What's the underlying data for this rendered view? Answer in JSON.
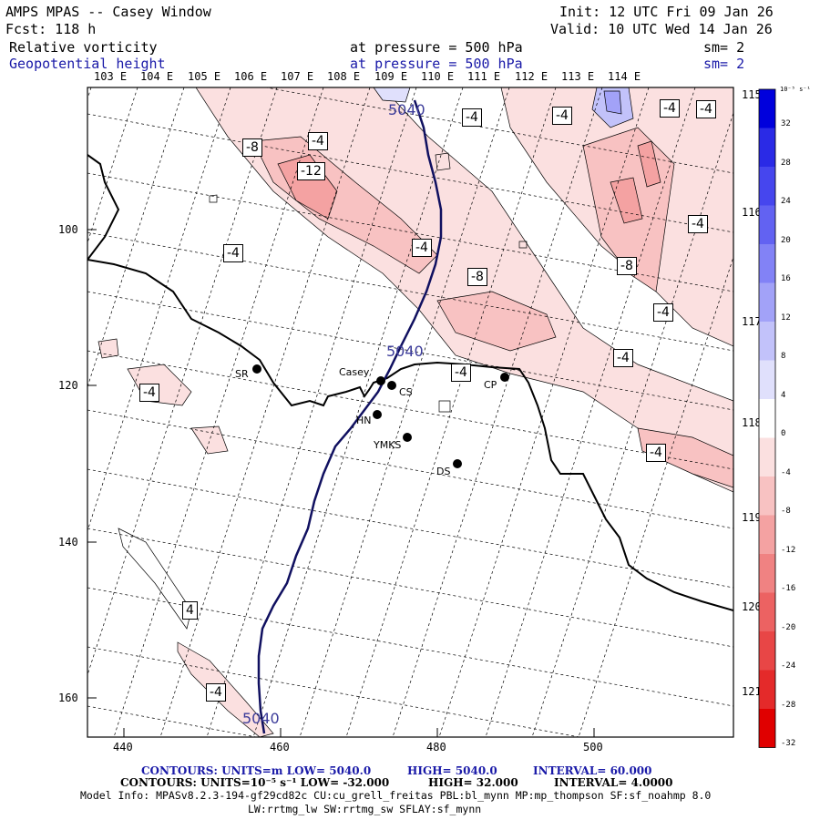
{
  "header": {
    "title": "AMPS MPAS -- Casey Window",
    "init": "Init: 12 UTC Fri 09 Jan 26",
    "fcst": "Fcst:  118 h",
    "valid": "Valid: 10 UTC Wed 14 Jan 26",
    "field1": "Relative vorticity",
    "field1_level": "at pressure =  500 hPa",
    "field1_sm": "sm= 2",
    "field2": "Geopotential height",
    "field2_level": "at pressure =  500 hPa",
    "field2_sm": "sm= 2"
  },
  "axes": {
    "top_lon": [
      "103 E",
      "104 E",
      "105 E",
      "106 E",
      "107 E",
      "108 E",
      "109 E",
      "110 E",
      "111 E",
      "112 E",
      "113 E",
      "114 E"
    ],
    "right_lon": [
      "115 E",
      "116 E",
      "117 E",
      "118 E",
      "119 E",
      "120 E",
      "121 E"
    ],
    "left_y": [
      "100",
      "120",
      "140",
      "160"
    ],
    "bottom_x": [
      "440",
      "460",
      "480",
      "500"
    ]
  },
  "colorbar": {
    "units": "10⁻⁵ s⁻¹",
    "ticks": [
      "32",
      "28",
      "24",
      "20",
      "16",
      "12",
      "8",
      "4",
      "0",
      "-4",
      "-8",
      "-12",
      "-16",
      "-20",
      "-24",
      "-28",
      "-32"
    ],
    "colors": [
      "#0000dc",
      "#2a2ae6",
      "#4646ee",
      "#6262f2",
      "#8282f6",
      "#a2a2f8",
      "#c2c2fa",
      "#e0e0fc",
      "#ffffff",
      "#fbe0e0",
      "#f8c2c2",
      "#f4a2a2",
      "#f08282",
      "#ec6262",
      "#e84646",
      "#e42a2a",
      "#e00000"
    ]
  },
  "stations": [
    {
      "id": "SR",
      "label": "SR"
    },
    {
      "id": "Casey",
      "label": "Casey"
    },
    {
      "id": "CS",
      "label": "CS"
    },
    {
      "id": "CP",
      "label": "CP"
    },
    {
      "id": "HN",
      "label": "HN"
    },
    {
      "id": "YMKS",
      "label": "YMKS"
    },
    {
      "id": "DS",
      "label": "DS"
    }
  ],
  "height_labels": [
    "5040",
    "5040",
    "5040"
  ],
  "vort_labels": [
    "-4",
    "-4",
    "-8",
    "-12",
    "-4",
    "-4",
    "-4",
    "-4",
    "-4",
    "-8",
    "-4",
    "-8",
    "-4",
    "-4",
    "-4",
    "-4",
    "-4",
    "4",
    "-4"
  ],
  "footer": {
    "line1_a": "CONTOURS:  UNITS=m  LOW=  5040.0",
    "line1_b": "HIGH=  5040.0",
    "line1_c": "INTERVAL=   60.000",
    "line2_a": "CONTOURS:  UNITS=10⁻⁵ s⁻¹  LOW= -32.000",
    "line2_b": "HIGH=  32.000",
    "line2_c": "INTERVAL=   4.0000",
    "model1": "Model Info: MPASv8.2.3-194-gf29cd82c CU:cu_grell_freitas PBL:bl_mynn MP:mp_thompson SF:sf_noahmp 8.0",
    "model2": "LW:rrtmg_lw SW:rrtmg_sw SFLAY:sf_mynn"
  }
}
